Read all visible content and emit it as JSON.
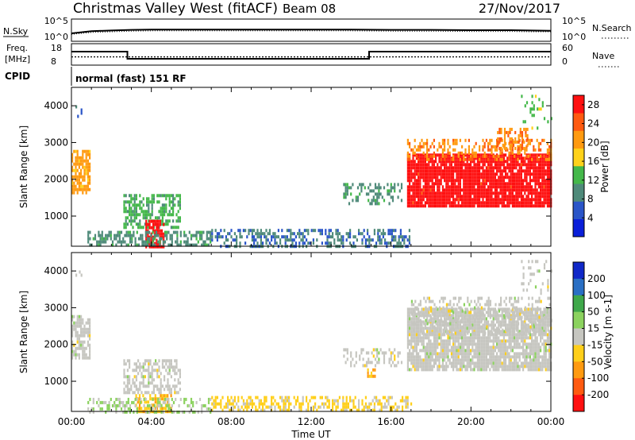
{
  "header": {
    "title": "Christmas Valley West (fitACF)",
    "beam": "Beam 08",
    "date": "27/Nov/2017"
  },
  "status_panels": {
    "nsky_label": "N.Sky",
    "nsky_ticks": [
      "10^5",
      "10^0"
    ],
    "nsearch_label": "N.Search",
    "nsearch_ticks": [
      "10^5",
      "10^0"
    ],
    "freq_label_1": "Freq.",
    "freq_label_2": "[MHz]",
    "freq_ticks": [
      "18",
      "8"
    ],
    "nave_label": "Nave",
    "nave_ticks": [
      "60",
      "0"
    ],
    "cpid_label": "CPID",
    "cpid_text": "normal (fast) 151 RF"
  },
  "colors": {
    "power": [
      "#0a1fd9",
      "#2a55c8",
      "#4f8a7a",
      "#44b84a",
      "#ffd21a",
      "#ff9a10",
      "#ff5a10",
      "#ff1010"
    ],
    "velocity": [
      "#ff1010",
      "#ff5a10",
      "#ff9a10",
      "#ffcf1a",
      "#c6c6c0",
      "#8bd25e",
      "#3fa84a",
      "#2a6fc4",
      "#1028c8"
    ],
    "ground": "#c6c6c0"
  },
  "chart_data": [
    {
      "type": "line",
      "title": "N.Sky / N.Search",
      "x": [
        0,
        1,
        2,
        3,
        4,
        5,
        6,
        8,
        10,
        12,
        14,
        16,
        18,
        20,
        22,
        23,
        24
      ],
      "series": [
        {
          "name": "N.Sky",
          "values": [
            1.5,
            2.2,
            2.4,
            2.6,
            2.7,
            2.7,
            2.7,
            2.7,
            2.7,
            2.7,
            2.7,
            2.6,
            2.6,
            2.5,
            2.5,
            2.4,
            2.3
          ]
        },
        {
          "name": "N.Search",
          "values": [
            1.2,
            1.8,
            2.0,
            2.2,
            2.3,
            2.3,
            2.3,
            2.3,
            2.3,
            2.3,
            2.3,
            2.2,
            2.2,
            2.1,
            2.1,
            2.0,
            2.0
          ]
        }
      ]
    },
    {
      "type": "line",
      "title": "Freq. / Nave",
      "x": [
        0,
        2.8,
        2.8,
        14.9,
        14.9,
        24
      ],
      "series": [
        {
          "name": "Freq.",
          "values": [
            15,
            15,
            10.5,
            10.5,
            15,
            15
          ]
        },
        {
          "name": "Nave",
          "values": [
            22,
            22,
            22,
            22,
            22,
            22
          ]
        }
      ],
      "ylim_freq": [
        8,
        18
      ],
      "ylim_nave": [
        0,
        60
      ]
    },
    {
      "type": "heatmap",
      "title": "Power",
      "xlabel": "",
      "ylabel": "Slant Range [km]",
      "xlim": [
        0,
        24
      ],
      "ylim": [
        180,
        4500
      ],
      "yticks": [
        1000,
        2000,
        3000,
        4000
      ],
      "colorbar_label": "Power [dB]",
      "colorbar_ticks": [
        4,
        8,
        12,
        16,
        20,
        24,
        28
      ],
      "colorbar_range": [
        0,
        30
      ],
      "regions": [
        {
          "x0": 0.0,
          "x1": 0.9,
          "y0": 1600,
          "y1": 2800,
          "value": 20,
          "density": 0.75
        },
        {
          "x0": 0.2,
          "x1": 0.6,
          "y0": 3700,
          "y1": 4100,
          "value": 6,
          "density": 0.15
        },
        {
          "x0": 2.6,
          "x1": 5.4,
          "y0": 700,
          "y1": 1600,
          "value": 12,
          "density": 0.55
        },
        {
          "x0": 3.7,
          "x1": 4.6,
          "y0": 200,
          "y1": 900,
          "value": 28,
          "density": 0.85
        },
        {
          "x0": 0.8,
          "x1": 7.0,
          "y0": 180,
          "y1": 600,
          "value": 10,
          "density": 0.55
        },
        {
          "x0": 7.0,
          "x1": 16.9,
          "y0": 180,
          "y1": 650,
          "value": 8,
          "density": 0.45
        },
        {
          "x0": 13.6,
          "x1": 16.5,
          "y0": 1300,
          "y1": 1900,
          "value": 10,
          "density": 0.35
        },
        {
          "x0": 16.8,
          "x1": 24.0,
          "y0": 1300,
          "y1": 2700,
          "value": 28,
          "density": 0.9
        },
        {
          "x0": 16.8,
          "x1": 24.0,
          "y0": 2500,
          "y1": 3100,
          "value": 22,
          "density": 0.4
        },
        {
          "x0": 21.3,
          "x1": 22.8,
          "y0": 2800,
          "y1": 3400,
          "value": 22,
          "density": 0.4
        },
        {
          "x0": 22.5,
          "x1": 24.0,
          "y0": 3400,
          "y1": 4300,
          "value": 14,
          "density": 0.15
        }
      ]
    },
    {
      "type": "heatmap",
      "title": "Velocity",
      "xlabel": "Time UT",
      "ylabel": "Slant Range [km]",
      "xlim": [
        0,
        24
      ],
      "xticks": [
        "00:00",
        "04:00",
        "08:00",
        "12:00",
        "16:00",
        "20:00",
        "00:00"
      ],
      "ylim": [
        180,
        4500
      ],
      "yticks": [
        1000,
        2000,
        3000,
        4000
      ],
      "colorbar_label": "Velocity [m s-1]",
      "colorbar_ticks": [
        200,
        100,
        50,
        15,
        -15,
        -50,
        -100,
        -200
      ],
      "colorbar_range": [
        -250,
        250
      ],
      "regions": [
        {
          "x0": 0.0,
          "x1": 0.9,
          "y0": 1600,
          "y1": 2800,
          "value": 0,
          "density": 0.7
        },
        {
          "x0": 0.2,
          "x1": 0.6,
          "y0": 3700,
          "y1": 4100,
          "value": 0,
          "density": 0.15
        },
        {
          "x0": 2.6,
          "x1": 5.4,
          "y0": 700,
          "y1": 1600,
          "value": 0,
          "density": 0.5
        },
        {
          "x0": 3.2,
          "x1": 5.0,
          "y0": 200,
          "y1": 650,
          "value": -70,
          "density": 0.6
        },
        {
          "x0": 0.8,
          "x1": 7.0,
          "y0": 180,
          "y1": 550,
          "value": 30,
          "density": 0.4
        },
        {
          "x0": 7.0,
          "x1": 17.0,
          "y0": 180,
          "y1": 600,
          "value": -40,
          "density": 0.5
        },
        {
          "x0": 13.6,
          "x1": 16.5,
          "y0": 1400,
          "y1": 1900,
          "value": 0,
          "density": 0.4
        },
        {
          "x0": 14.8,
          "x1": 15.2,
          "y0": 1100,
          "y1": 1350,
          "value": -80,
          "density": 0.6
        },
        {
          "x0": 16.8,
          "x1": 24.0,
          "y0": 1300,
          "y1": 3000,
          "value": 0,
          "density": 0.85
        },
        {
          "x0": 17.0,
          "x1": 24.0,
          "y0": 2300,
          "y1": 3300,
          "value": 0,
          "density": 0.3
        },
        {
          "x0": 22.5,
          "x1": 24.0,
          "y0": 3400,
          "y1": 4300,
          "value": 0,
          "density": 0.15
        }
      ]
    }
  ]
}
